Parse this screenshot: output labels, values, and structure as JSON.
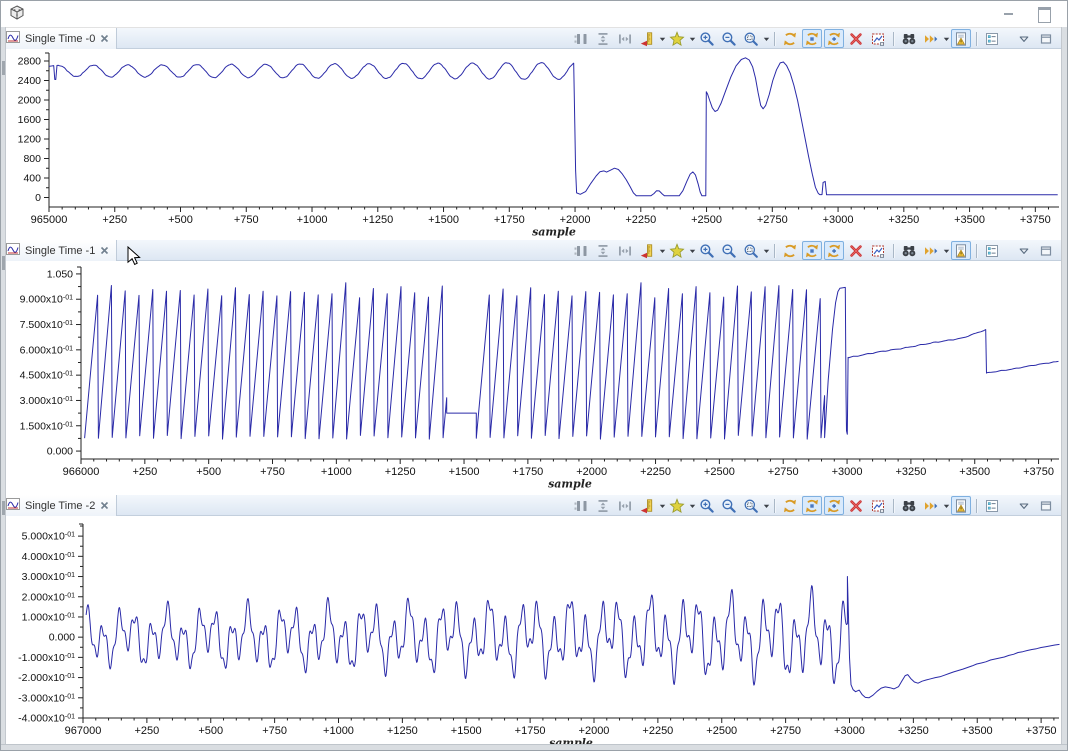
{
  "window": {
    "top_icon": "cube-icon",
    "controls": [
      "minimize",
      "restore"
    ]
  },
  "panels": [
    {
      "title": "Single Time -0"
    },
    {
      "title": "Single Time -1"
    },
    {
      "title": "Single Time -2"
    }
  ],
  "toolbar": {
    "items": [
      {
        "icon": "row-layout"
      },
      {
        "icon": "distribute-vertical"
      },
      {
        "icon": "fit-width"
      },
      {
        "icon": "axis-scale",
        "dropdown": true
      },
      {
        "icon": "add-star",
        "dropdown": true
      },
      {
        "icon": "zoom-in"
      },
      {
        "icon": "zoom-out"
      },
      {
        "icon": "zoom-sel",
        "dropdown": true
      },
      {
        "icon": "refresh",
        "sep": true
      },
      {
        "icon": "sync-all",
        "toggled": true
      },
      {
        "icon": "sync-one",
        "toggled": true
      },
      {
        "icon": "delete"
      },
      {
        "icon": "export-chart"
      },
      {
        "icon": "search",
        "sep": true
      },
      {
        "icon": "step",
        "dropdown": true
      },
      {
        "icon": "legend",
        "toggled": true
      },
      {
        "icon": "settings-list",
        "sep": true
      },
      {
        "icon": "chevron-menu",
        "gap": true
      },
      {
        "icon": "minimize-view"
      }
    ]
  },
  "chart_data": [
    {
      "type": "line",
      "title": "Single Time -0",
      "xlabel": "sample",
      "line_color": "#2a2aa8",
      "x_ticks": [
        "965000",
        "+250",
        "+500",
        "+750",
        "+1000",
        "+1250",
        "+1500",
        "+1750",
        "+2000",
        "+2250",
        "+2500",
        "+2750",
        "+3000",
        "+3250",
        "+3500",
        "+3750"
      ],
      "x_tick_step": 250,
      "x_minor_step": 50,
      "x_range": [
        0,
        3840
      ],
      "ylim": [
        -195,
        2964
      ],
      "y_ticks": [
        {
          "v": 0,
          "l": "0"
        },
        {
          "v": 400,
          "l": "400"
        },
        {
          "v": 800,
          "l": "800"
        },
        {
          "v": 1200,
          "l": "1200"
        },
        {
          "v": 1600,
          "l": "1600"
        },
        {
          "v": 2000,
          "l": "2000"
        },
        {
          "v": 2400,
          "l": "2400"
        },
        {
          "v": 2800,
          "l": "2800"
        }
      ],
      "y_minor": [
        200,
        600,
        1000,
        1400,
        1800,
        2200,
        2600
      ],
      "segments": [
        {
          "t": "points",
          "pts": [
            [
              0,
              2690
            ],
            [
              12,
              2700
            ],
            [
              18,
              2705
            ],
            [
              22,
              2420
            ],
            [
              26,
              2420
            ],
            [
              30,
              2690
            ]
          ]
        },
        {
          "t": "sine",
          "x0": 30,
          "x1": 1995,
          "mean": 2595,
          "a0": 115,
          "a1": 175,
          "period": 131,
          "phase": 1.2,
          "n": 10
        },
        {
          "t": "points",
          "pts": [
            [
              1995,
              2740
            ],
            [
              1999,
              1500
            ],
            [
              2002,
              560
            ],
            [
              2006,
              95
            ]
          ]
        },
        {
          "t": "points",
          "pts": [
            [
              2006,
              95
            ],
            [
              2020,
              65
            ],
            [
              2040,
              120
            ],
            [
              2060,
              290
            ],
            [
              2080,
              440
            ],
            [
              2095,
              530
            ],
            [
              2110,
              545
            ],
            [
              2120,
              520
            ],
            [
              2135,
              560
            ],
            [
              2150,
              600
            ],
            [
              2165,
              575
            ],
            [
              2180,
              480
            ],
            [
              2195,
              360
            ],
            [
              2210,
              215
            ],
            [
              2222,
              95
            ],
            [
              2232,
              40
            ]
          ]
        },
        {
          "t": "flat",
          "x0": 2232,
          "x1": 2288,
          "v": 35
        },
        {
          "t": "points",
          "pts": [
            [
              2288,
              35
            ],
            [
              2300,
              80
            ],
            [
              2310,
              140
            ],
            [
              2320,
              135
            ],
            [
              2332,
              70
            ],
            [
              2340,
              35
            ]
          ]
        },
        {
          "t": "flat",
          "x0": 2340,
          "x1": 2396,
          "v": 35
        },
        {
          "t": "points",
          "pts": [
            [
              2396,
              35
            ],
            [
              2410,
              140
            ],
            [
              2425,
              330
            ],
            [
              2438,
              480
            ],
            [
              2448,
              525
            ],
            [
              2458,
              460
            ],
            [
              2468,
              280
            ],
            [
              2476,
              110
            ],
            [
              2482,
              40
            ]
          ]
        },
        {
          "t": "flat",
          "x0": 2482,
          "x1": 2497,
          "v": 35
        },
        {
          "t": "points",
          "pts": [
            [
              2497,
              35
            ],
            [
              2499,
              2170
            ],
            [
              2504,
              2120
            ],
            [
              2512,
              1990
            ],
            [
              2522,
              1840
            ],
            [
              2532,
              1765
            ],
            [
              2542,
              1790
            ],
            [
              2555,
              1930
            ],
            [
              2572,
              2180
            ],
            [
              2592,
              2470
            ],
            [
              2612,
              2700
            ],
            [
              2632,
              2830
            ],
            [
              2648,
              2865
            ],
            [
              2662,
              2820
            ],
            [
              2675,
              2680
            ],
            [
              2686,
              2450
            ],
            [
              2696,
              2150
            ],
            [
              2706,
              1890
            ],
            [
              2715,
              1820
            ],
            [
              2725,
              1890
            ],
            [
              2738,
              2110
            ],
            [
              2752,
              2400
            ],
            [
              2766,
              2620
            ],
            [
              2780,
              2760
            ],
            [
              2792,
              2780
            ],
            [
              2804,
              2710
            ],
            [
              2818,
              2550
            ],
            [
              2832,
              2300
            ],
            [
              2846,
              1990
            ],
            [
              2860,
              1620
            ],
            [
              2874,
              1230
            ],
            [
              2888,
              840
            ],
            [
              2902,
              480
            ],
            [
              2914,
              210
            ],
            [
              2924,
              90
            ],
            [
              2930,
              60
            ]
          ]
        },
        {
          "t": "points",
          "pts": [
            [
              2930,
              60
            ],
            [
              2939,
              60
            ],
            [
              2943,
              310
            ],
            [
              2951,
              330
            ],
            [
              2956,
              65
            ]
          ]
        },
        {
          "t": "flat",
          "x0": 2956,
          "x1": 3835,
          "v": 55
        }
      ]
    },
    {
      "type": "line",
      "title": "Single Time -1",
      "xlabel": "sample",
      "line_color": "#2a2aa8",
      "x_ticks": [
        "966000",
        "+250",
        "+500",
        "+750",
        "+1000",
        "+1250",
        "+1500",
        "+1750",
        "+2000",
        "+2250",
        "+2500",
        "+2750",
        "+3000",
        "+3250",
        "+3500",
        "+3750"
      ],
      "x_tick_step": 250,
      "x_minor_step": 50,
      "x_range": [
        0,
        3830
      ],
      "ylim": [
        -0.047,
        1.091
      ],
      "y_ticks": [
        {
          "v": 0,
          "l": "0.000"
        },
        {
          "v": 0.15,
          "l": "1.500x10-01"
        },
        {
          "v": 0.3,
          "l": "3.000x10-01"
        },
        {
          "v": 0.45,
          "l": "4.500x10-01"
        },
        {
          "v": 0.6,
          "l": "6.000x10-01"
        },
        {
          "v": 0.75,
          "l": "7.500x10-01"
        },
        {
          "v": 0.9,
          "l": "9.000x10-01"
        },
        {
          "v": 1.05,
          "l": "1.050"
        }
      ],
      "y_minor": [
        0.075,
        0.225,
        0.375,
        0.525,
        0.675,
        0.825,
        0.975
      ],
      "segments": [
        {
          "t": "saw",
          "x0": 14,
          "x1": 1432,
          "period": 54,
          "lo": 0.07,
          "pmin": 0.9,
          "pmax": 1.0,
          "seed": 2
        },
        {
          "t": "flat",
          "x0": 1432,
          "x1": 1548,
          "v": 0.225
        },
        {
          "t": "saw",
          "x0": 1548,
          "x1": 2912,
          "period": 54,
          "lo": 0.07,
          "pmin": 0.9,
          "pmax": 1.0,
          "seed": 9
        },
        {
          "t": "points",
          "pts": [
            [
              2912,
              0.08
            ],
            [
              2926,
              0.42
            ],
            [
              2943,
              0.72
            ],
            [
              2955,
              0.88
            ],
            [
              2964,
              0.945
            ],
            [
              2972,
              0.965
            ],
            [
              2993,
              0.97
            ],
            [
              2996,
              0.35
            ],
            [
              2998,
              0.12
            ],
            [
              3001,
              0.1
            ],
            [
              3004,
              0.555
            ]
          ]
        },
        {
          "t": "line",
          "x0": 3004,
          "x1": 3455,
          "v0": 0.555,
          "v1": 0.672,
          "noise": 0.004
        },
        {
          "t": "line",
          "x0": 3455,
          "x1": 3543,
          "v0": 0.672,
          "v1": 0.718,
          "noise": 0.003
        },
        {
          "t": "points",
          "pts": [
            [
              3543,
              0.718
            ],
            [
              3546,
              0.462
            ]
          ]
        },
        {
          "t": "line",
          "x0": 3546,
          "x1": 3828,
          "v0": 0.462,
          "v1": 0.532,
          "noise": 0.003
        }
      ]
    },
    {
      "type": "line",
      "title": "Single Time -2",
      "xlabel": "sample",
      "line_color": "#2a2aa8",
      "x_ticks": [
        "967000",
        "+250",
        "+500",
        "+750",
        "+1000",
        "+1250",
        "+1500",
        "+1750",
        "+2000",
        "+2250",
        "+2500",
        "+2750",
        "+3000",
        "+3250",
        "+3500",
        "+3750"
      ],
      "x_tick_step": 250,
      "x_minor_step": 50,
      "x_range": [
        0,
        3820
      ],
      "ylim": [
        -0.4,
        0.56
      ],
      "y_ticks": [
        {
          "v": 0.5,
          "l": "5.000x10-01"
        },
        {
          "v": 0.4,
          "l": "4.000x10-01"
        },
        {
          "v": 0.3,
          "l": "3.000x10-01"
        },
        {
          "v": 0.2,
          "l": "2.000x10-01"
        },
        {
          "v": 0.1,
          "l": "1.000x10-01"
        },
        {
          "v": 0,
          "l": "0.000"
        },
        {
          "v": -0.1,
          "l": "-1.000x10-01"
        },
        {
          "v": -0.2,
          "l": "-2.000x10-01"
        },
        {
          "v": -0.3,
          "l": "-3.000x10-01"
        },
        {
          "v": -0.4,
          "l": "-4.000x10-01"
        }
      ],
      "y_minor": [
        0.55,
        0.45,
        0.35,
        0.25,
        0.15,
        0.05,
        -0.05,
        -0.15,
        -0.25,
        -0.35
      ],
      "segments": [
        {
          "t": "msine",
          "x0": 12,
          "x1": 2992,
          "g0": 0.85,
          "g1": 1.3,
          "comps": [
            [
              0.105,
              63,
              0
            ],
            [
              0.06,
              158,
              1.1
            ],
            [
              0.038,
              24,
              2.3
            ]
          ]
        },
        {
          "t": "points",
          "pts": [
            [
              2992,
              0.3
            ],
            [
              2996,
              0.1
            ],
            [
              3000,
              -0.1
            ],
            [
              3006,
              -0.235
            ],
            [
              3014,
              -0.26
            ],
            [
              3024,
              -0.27
            ],
            [
              3038,
              -0.262
            ],
            [
              3050,
              -0.285
            ],
            [
              3062,
              -0.298
            ],
            [
              3076,
              -0.3
            ],
            [
              3092,
              -0.287
            ],
            [
              3108,
              -0.268
            ],
            [
              3124,
              -0.252
            ],
            [
              3140,
              -0.246
            ],
            [
              3158,
              -0.25
            ],
            [
              3174,
              -0.256
            ],
            [
              3192,
              -0.245
            ],
            [
              3206,
              -0.215
            ],
            [
              3218,
              -0.19
            ],
            [
              3228,
              -0.185
            ],
            [
              3240,
              -0.205
            ],
            [
              3254,
              -0.222
            ],
            [
              3268,
              -0.228
            ],
            [
              3284,
              -0.218
            ],
            [
              3300,
              -0.212
            ],
            [
              3318,
              -0.206
            ],
            [
              3336,
              -0.2
            ],
            [
              3354,
              -0.196
            ],
            [
              3372,
              -0.188
            ],
            [
              3390,
              -0.18
            ],
            [
              3408,
              -0.172
            ],
            [
              3426,
              -0.165
            ],
            [
              3444,
              -0.158
            ],
            [
              3462,
              -0.15
            ],
            [
              3480,
              -0.142
            ],
            [
              3498,
              -0.133
            ],
            [
              3516,
              -0.128
            ],
            [
              3534,
              -0.122
            ],
            [
              3552,
              -0.113
            ],
            [
              3570,
              -0.108
            ],
            [
              3588,
              -0.103
            ],
            [
              3606,
              -0.098
            ],
            [
              3624,
              -0.09
            ],
            [
              3642,
              -0.085
            ],
            [
              3660,
              -0.076
            ],
            [
              3678,
              -0.072
            ],
            [
              3696,
              -0.066
            ],
            [
              3714,
              -0.061
            ],
            [
              3732,
              -0.057
            ],
            [
              3750,
              -0.051
            ],
            [
              3768,
              -0.047
            ],
            [
              3786,
              -0.043
            ],
            [
              3804,
              -0.039
            ],
            [
              3822,
              -0.036
            ]
          ]
        }
      ]
    }
  ]
}
